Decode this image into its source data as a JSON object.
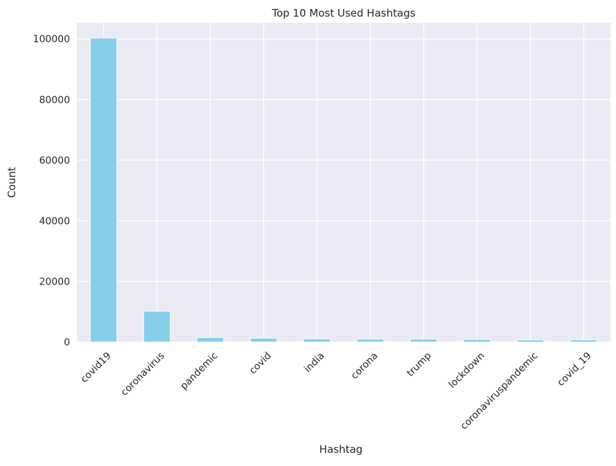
{
  "chart_data": {
    "type": "bar",
    "title": "Top 10 Most Used Hashtags",
    "xlabel": "Hashtag",
    "ylabel": "Count",
    "categories": [
      "covid19",
      "coronavirus",
      "pandemic",
      "covid",
      "india",
      "corona",
      "trump",
      "lockdown",
      "coronaviruspandemic",
      "covid_19"
    ],
    "values": [
      100300,
      10200,
      1500,
      1300,
      1050,
      1000,
      1000,
      850,
      750,
      750
    ],
    "ylim": [
      0,
      105300
    ],
    "yticks": [
      0,
      20000,
      40000,
      60000,
      80000,
      100000
    ],
    "grid": true,
    "bar_color": "#87ceeb",
    "background_color": "#eaeaf2",
    "grid_color": "#ffffff"
  }
}
